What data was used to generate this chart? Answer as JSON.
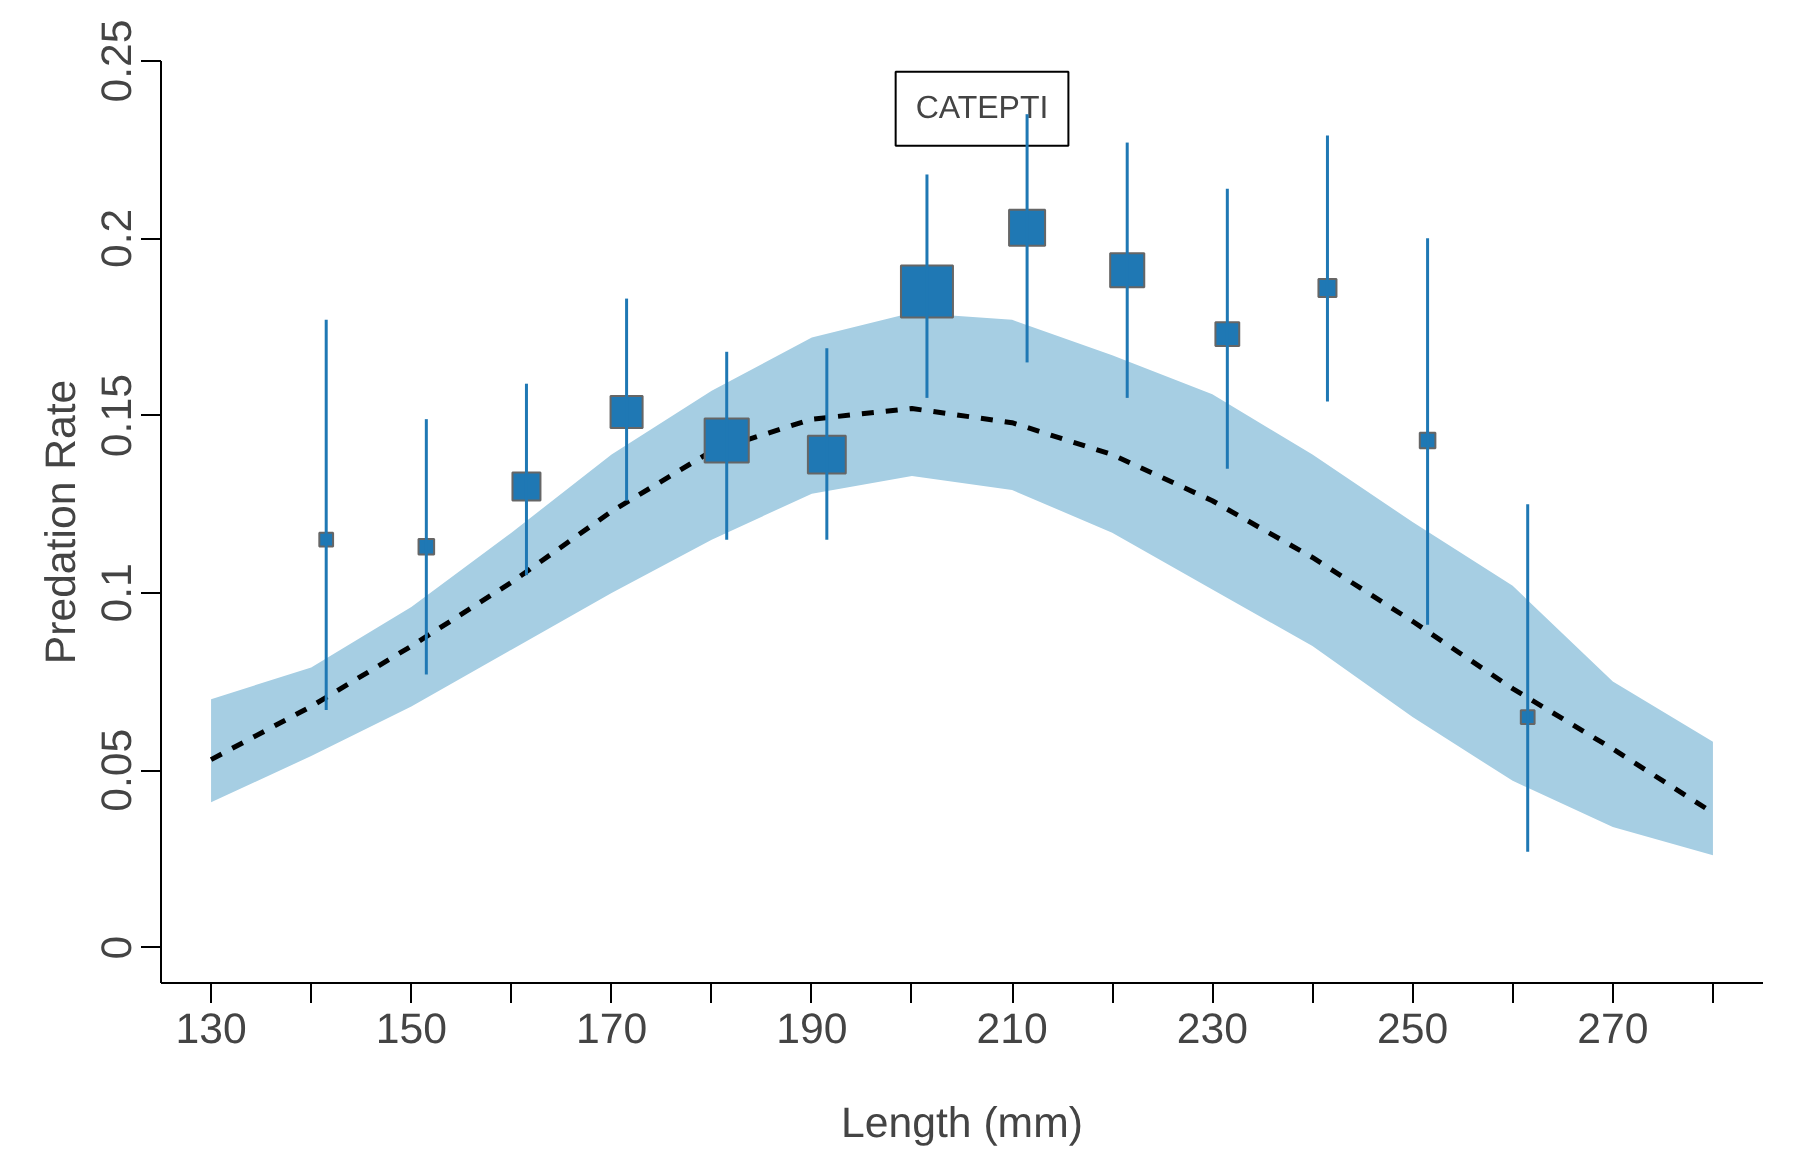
{
  "chart_data": {
    "type": "bubble",
    "xlabel": "Length (mm)",
    "ylabel": "Predation Rate",
    "annotations": [
      "CATEPTI"
    ],
    "marker": "square",
    "grid": false,
    "xlim": [
      125,
      285
    ],
    "ylim": [
      -0.01,
      0.25
    ],
    "xticks": [
      130,
      {
        "value": 140,
        "label": null
      },
      150,
      {
        "value": 160,
        "label": null
      },
      170,
      {
        "value": 180,
        "label": null
      },
      190,
      {
        "value": 200,
        "label": null
      },
      210,
      {
        "value": 220,
        "label": null
      },
      230,
      {
        "value": 240,
        "label": null
      },
      250,
      {
        "value": 260,
        "label": null
      },
      270,
      {
        "value": 280,
        "label": null
      }
    ],
    "yticks": [
      0,
      0.05,
      0.1,
      0.15,
      0.2,
      0.25
    ],
    "series": [
      {
        "type": "line",
        "color": "#000000",
        "line_style": "dashed",
        "marker": "none",
        "x": [
          130,
          140,
          150,
          160,
          170,
          180,
          190,
          200,
          210,
          220,
          230,
          240,
          250,
          260,
          270,
          280
        ],
        "values": [
          0.053,
          0.068,
          0.085,
          0.103,
          0.123,
          0.14,
          0.149,
          0.152,
          0.148,
          0.139,
          0.126,
          0.11,
          0.092,
          0.073,
          0.056,
          0.038
        ],
        "lower": [
          0.041,
          0.054,
          0.068,
          0.084,
          0.1,
          0.115,
          0.128,
          0.133,
          0.129,
          0.117,
          0.101,
          0.085,
          0.065,
          0.047,
          0.034,
          0.026
        ],
        "upper": [
          0.07,
          0.079,
          0.096,
          0.117,
          0.139,
          0.157,
          0.172,
          0.179,
          0.177,
          0.167,
          0.156,
          0.139,
          0.12,
          0.102,
          0.075,
          0.058
        ]
      },
      {
        "color": "#1f78b4",
        "x": [
          141.5,
          151.5,
          161.5,
          171.5,
          181.5,
          191.5,
          201.5,
          211.5,
          221.5,
          231.5,
          241.5,
          251.5,
          261.5
        ],
        "values": [
          0.115,
          0.113,
          0.13,
          0.151,
          0.143,
          0.139,
          0.185,
          0.203,
          0.191,
          0.173,
          0.186,
          0.143,
          0.065
        ],
        "sizes": [
          0.07,
          0.09,
          0.29,
          0.38,
          0.72,
          0.53,
          1,
          0.48,
          0.43,
          0.21,
          0.12,
          0.09,
          0.07
        ],
        "errors": [
          [
            0.067,
            0.177
          ],
          [
            0.077,
            0.149
          ],
          [
            0.105,
            0.159
          ],
          [
            0.126,
            0.183
          ],
          [
            0.115,
            0.168
          ],
          [
            0.115,
            0.169
          ],
          [
            0.155,
            0.218
          ],
          [
            0.165,
            0.235
          ],
          [
            0.155,
            0.227
          ],
          [
            0.135,
            0.214
          ],
          [
            0.154,
            0.229
          ],
          [
            0.091,
            0.2
          ],
          [
            0.027,
            0.125
          ]
        ]
      }
    ]
  }
}
